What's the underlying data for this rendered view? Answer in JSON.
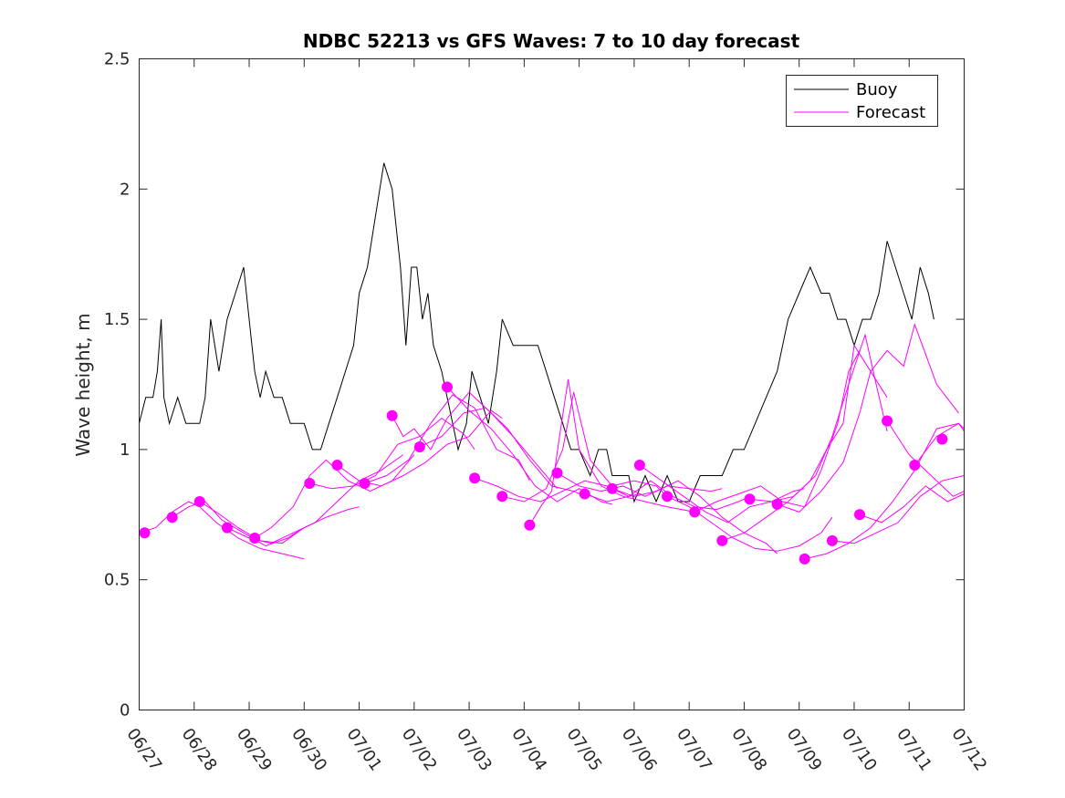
{
  "chart_data": {
    "type": "line",
    "title": "NDBC 52213 vs GFS Waves: 7 to 10 day forecast",
    "ylabel": "Wave height, m",
    "xlabel": "",
    "ylim": [
      0,
      2.5
    ],
    "xlim": [
      0,
      15
    ],
    "yticks": [
      0,
      0.5,
      1,
      1.5,
      2,
      2.5
    ],
    "ytick_labels": [
      "0",
      "0.5",
      "1",
      "1.5",
      "2",
      "2.5"
    ],
    "xticks": [
      0,
      1,
      2,
      3,
      4,
      5,
      6,
      7,
      8,
      9,
      10,
      11,
      12,
      13,
      14,
      15
    ],
    "xtick_labels": [
      "06/27",
      "06/28",
      "06/29",
      "06/30",
      "07/01",
      "07/02",
      "07/03",
      "07/04",
      "07/05",
      "07/06",
      "07/07",
      "07/08",
      "07/09",
      "07/10",
      "07/11",
      "07/12"
    ],
    "x_unit": "days since 06/27 00:00",
    "grid": false,
    "legend": {
      "position": "top-right",
      "entries": [
        {
          "name": "Buoy",
          "color": "#000000"
        },
        {
          "name": "Forecast",
          "color": "#ff00ff"
        }
      ]
    },
    "series": [
      {
        "name": "Buoy",
        "color": "#000000",
        "style": "line",
        "x": [
          0,
          0.12,
          0.25,
          0.33,
          0.4,
          0.45,
          0.55,
          0.7,
          0.85,
          1.0,
          1.1,
          1.2,
          1.3,
          1.45,
          1.6,
          1.75,
          1.9,
          2.0,
          2.1,
          2.2,
          2.3,
          2.45,
          2.6,
          2.75,
          2.9,
          3.0,
          3.15,
          3.3,
          3.45,
          3.6,
          3.75,
          3.9,
          4.0,
          4.15,
          4.3,
          4.45,
          4.6,
          4.75,
          4.85,
          4.95,
          5.05,
          5.15,
          5.25,
          5.35,
          5.5,
          5.6,
          5.7,
          5.8,
          5.95,
          6.05,
          6.2,
          6.35,
          6.5,
          6.6,
          6.8,
          6.95,
          7.1,
          7.25,
          7.4,
          7.55,
          7.7,
          7.85,
          8.0,
          8.2,
          8.35,
          8.5,
          8.6,
          8.75,
          8.9,
          9.0,
          9.2,
          9.4,
          9.6,
          9.8,
          10.0,
          10.2,
          10.4,
          10.6,
          10.8,
          11.0,
          11.2,
          11.4,
          11.6,
          11.8,
          12.0,
          12.2,
          12.4,
          12.55,
          12.7,
          12.85,
          13.0,
          13.15,
          13.3,
          13.45,
          13.6,
          13.75,
          13.9,
          14.05,
          14.2,
          14.35,
          14.45
        ],
        "values": [
          1.1,
          1.2,
          1.2,
          1.3,
          1.5,
          1.2,
          1.1,
          1.2,
          1.1,
          1.1,
          1.1,
          1.2,
          1.5,
          1.3,
          1.5,
          1.6,
          1.7,
          1.5,
          1.3,
          1.2,
          1.3,
          1.2,
          1.2,
          1.1,
          1.1,
          1.1,
          1.0,
          1.0,
          1.1,
          1.2,
          1.3,
          1.4,
          1.6,
          1.7,
          1.9,
          2.1,
          2.0,
          1.7,
          1.4,
          1.7,
          1.7,
          1.5,
          1.6,
          1.4,
          1.3,
          1.2,
          1.1,
          1.0,
          1.1,
          1.3,
          1.2,
          1.1,
          1.3,
          1.5,
          1.4,
          1.4,
          1.4,
          1.4,
          1.3,
          1.2,
          1.1,
          1.0,
          1.0,
          0.9,
          1.0,
          1.0,
          0.9,
          0.9,
          0.9,
          0.8,
          0.9,
          0.8,
          0.9,
          0.8,
          0.8,
          0.9,
          0.9,
          0.9,
          1.0,
          1.0,
          1.1,
          1.2,
          1.3,
          1.5,
          1.6,
          1.7,
          1.6,
          1.6,
          1.5,
          1.5,
          1.4,
          1.5,
          1.5,
          1.6,
          1.8,
          1.7,
          1.6,
          1.5,
          1.7,
          1.6,
          1.5
        ]
      },
      {
        "name": "Forecast",
        "color": "#ff00ff",
        "style": "line",
        "runs": [
          {
            "x": [
              0,
              0.3,
              0.6,
              0.9,
              1.1,
              1.4,
              1.8,
              2.2,
              2.6,
              3.0
            ],
            "values": [
              0.68,
              0.7,
              0.76,
              0.8,
              0.78,
              0.72,
              0.66,
              0.62,
              0.6,
              0.58
            ]
          },
          {
            "x": [
              0.6,
              0.9,
              1.2,
              1.5,
              1.9,
              2.3,
              2.7,
              3.0
            ],
            "values": [
              0.74,
              0.78,
              0.8,
              0.73,
              0.68,
              0.63,
              0.66,
              0.7
            ]
          },
          {
            "x": [
              1.1,
              1.4,
              1.8,
              2.2,
              2.6,
              3.0,
              3.4,
              3.8,
              4.0
            ],
            "values": [
              0.8,
              0.76,
              0.7,
              0.65,
              0.64,
              0.7,
              0.74,
              0.77,
              0.78
            ]
          },
          {
            "x": [
              1.6,
              2.0,
              2.4,
              2.8,
              3.2,
              3.6,
              4.0,
              4.4,
              4.8
            ],
            "values": [
              0.7,
              0.66,
              0.64,
              0.68,
              0.72,
              0.8,
              0.88,
              0.92,
              0.98
            ]
          },
          {
            "x": [
              2.1,
              2.4,
              2.8,
              3.1,
              3.4,
              3.8,
              4.2,
              4.6,
              5.0
            ],
            "values": [
              0.66,
              0.7,
              0.78,
              0.9,
              0.96,
              0.88,
              0.84,
              0.88,
              0.98
            ]
          },
          {
            "x": [
              3.1,
              3.5,
              3.9,
              4.3,
              4.7,
              5.1,
              5.5,
              5.9,
              6.1
            ],
            "values": [
              0.87,
              0.85,
              0.86,
              0.9,
              1.02,
              1.05,
              1.12,
              1.06,
              1.0
            ]
          },
          {
            "x": [
              3.6,
              4.0,
              4.4,
              4.8,
              5.2,
              5.6,
              6.0,
              6.4,
              6.6
            ],
            "values": [
              0.94,
              0.88,
              0.86,
              0.9,
              0.95,
              1.02,
              1.05,
              1.15,
              1.12
            ]
          },
          {
            "x": [
              4.1,
              4.5,
              4.9,
              5.3,
              5.7,
              6.1,
              6.5,
              6.9,
              7.1
            ],
            "values": [
              0.87,
              0.9,
              0.96,
              1.1,
              1.21,
              1.16,
              1.0,
              0.96,
              0.88
            ]
          },
          {
            "x": [
              4.6,
              4.8,
              5.0,
              5.3,
              5.6,
              6.0,
              6.4,
              6.8,
              7.2,
              7.6
            ],
            "values": [
              1.13,
              1.05,
              1.08,
              1.0,
              1.12,
              1.22,
              1.14,
              1.05,
              0.95,
              0.85
            ]
          },
          {
            "x": [
              5.1,
              5.5,
              5.9,
              6.3,
              6.7,
              7.1,
              7.5,
              7.9,
              8.1
            ],
            "values": [
              1.01,
              1.05,
              1.14,
              1.16,
              1.08,
              0.96,
              0.86,
              0.84,
              0.82
            ]
          },
          {
            "x": [
              5.6,
              6.0,
              6.4,
              6.8,
              7.2,
              7.6,
              8.0,
              8.4,
              8.6
            ],
            "values": [
              1.24,
              1.15,
              1.08,
              0.98,
              0.86,
              0.8,
              0.85,
              0.8,
              0.79
            ]
          },
          {
            "x": [
              6.1,
              6.5,
              6.9,
              7.3,
              7.7,
              8.1,
              8.5,
              8.9,
              9.1
            ],
            "values": [
              0.89,
              0.86,
              0.82,
              0.8,
              0.84,
              0.88,
              0.86,
              0.82,
              0.83
            ]
          },
          {
            "x": [
              6.6,
              7.0,
              7.4,
              7.7,
              7.9,
              8.2,
              8.6,
              9.0,
              9.4,
              9.6
            ],
            "values": [
              0.82,
              0.8,
              0.85,
              1.0,
              1.22,
              0.96,
              0.86,
              0.88,
              0.86,
              0.82
            ]
          },
          {
            "x": [
              7.1,
              7.3,
              7.5,
              7.65,
              7.8,
              8.0,
              8.4,
              8.8,
              9.2,
              9.6,
              10.1
            ],
            "values": [
              0.71,
              0.78,
              0.84,
              1.06,
              1.27,
              1.0,
              0.86,
              0.82,
              0.8,
              0.78,
              0.76
            ]
          },
          {
            "x": [
              7.6,
              8.0,
              8.4,
              8.8,
              9.2,
              9.6,
              10.0,
              10.4,
              10.6
            ],
            "values": [
              0.91,
              0.86,
              0.84,
              0.86,
              0.82,
              0.86,
              0.85,
              0.84,
              0.85
            ]
          },
          {
            "x": [
              8.1,
              8.5,
              8.9,
              9.3,
              9.7,
              10.1,
              10.5,
              10.9,
              11.1
            ],
            "values": [
              0.83,
              0.8,
              0.82,
              0.88,
              0.82,
              0.78,
              0.77,
              0.8,
              0.82
            ]
          },
          {
            "x": [
              8.6,
              9.0,
              9.4,
              9.8,
              10.2,
              10.6,
              11.0,
              11.4,
              11.6
            ],
            "values": [
              0.85,
              0.82,
              0.84,
              0.88,
              0.82,
              0.74,
              0.68,
              0.64,
              0.6
            ]
          },
          {
            "x": [
              9.1,
              9.5,
              9.9,
              10.3,
              10.7,
              11.1,
              11.5,
              11.9,
              12.1
            ],
            "values": [
              0.94,
              0.88,
              0.82,
              0.76,
              0.72,
              0.78,
              0.8,
              0.84,
              0.85
            ]
          },
          {
            "x": [
              9.6,
              10.0,
              10.4,
              10.8,
              11.2,
              11.6,
              12.0,
              12.4,
              12.6
            ],
            "values": [
              0.82,
              0.78,
              0.72,
              0.66,
              0.62,
              0.61,
              0.63,
              0.68,
              0.74
            ]
          },
          {
            "x": [
              10.1,
              10.5,
              10.9,
              11.3,
              11.7,
              12.1,
              12.4,
              12.7,
              12.9,
              13.1
            ],
            "values": [
              0.76,
              0.8,
              0.83,
              0.86,
              0.8,
              0.78,
              0.92,
              1.1,
              1.3,
              1.38
            ]
          },
          {
            "x": [
              10.6,
              11.0,
              11.4,
              11.8,
              12.2,
              12.5,
              12.8,
              13.0,
              13.3,
              13.6
            ],
            "values": [
              0.65,
              0.68,
              0.74,
              0.8,
              0.88,
              1.0,
              1.1,
              1.4,
              1.3,
              1.2
            ]
          },
          {
            "x": [
              11.1,
              11.5,
              11.9,
              12.3,
              12.6,
              12.9,
              13.2,
              13.4,
              13.6
            ],
            "values": [
              0.81,
              0.8,
              0.82,
              0.9,
              1.05,
              1.25,
              1.44,
              1.25,
              1.07
            ]
          },
          {
            "x": [
              11.6,
              12.0,
              12.4,
              12.8,
              13.1,
              13.3,
              13.6,
              13.9,
              14.1,
              14.5,
              14.9
            ],
            "values": [
              0.79,
              0.76,
              0.84,
              0.95,
              1.14,
              1.3,
              1.38,
              1.32,
              1.48,
              1.25,
              1.14
            ]
          },
          {
            "x": [
              12.1,
              12.5,
              12.9,
              13.3,
              13.7,
              14.1,
              14.5,
              14.9,
              15.0
            ],
            "values": [
              0.58,
              0.6,
              0.64,
              0.7,
              0.8,
              0.92,
              1.08,
              1.1,
              1.07
            ]
          },
          {
            "x": [
              12.6,
              13.0,
              13.4,
              13.8,
              14.2,
              14.6,
              15.0
            ],
            "values": [
              0.65,
              0.64,
              0.68,
              0.72,
              0.82,
              0.88,
              0.9
            ]
          },
          {
            "x": [
              13.1,
              13.5,
              13.9,
              14.3,
              14.7,
              15.0
            ],
            "values": [
              0.75,
              0.72,
              0.78,
              0.86,
              0.8,
              0.83
            ]
          },
          {
            "x": [
              13.6,
              14.0,
              14.4,
              14.8,
              15.0
            ],
            "values": [
              1.11,
              0.98,
              0.9,
              0.82,
              0.84
            ]
          },
          {
            "x": [
              14.1,
              14.5,
              14.9,
              15.0
            ],
            "values": [
              0.94,
              1.05,
              1.1,
              1.08
            ]
          }
        ]
      },
      {
        "name": "Forecast",
        "color": "#ff00ff",
        "style": "markers",
        "x": [
          0.1,
          0.6,
          1.1,
          1.6,
          2.1,
          3.1,
          3.6,
          4.1,
          4.6,
          5.1,
          5.6,
          6.1,
          6.6,
          7.1,
          7.6,
          8.1,
          8.6,
          9.1,
          9.6,
          10.1,
          10.6,
          11.1,
          11.6,
          12.1,
          12.6,
          13.1,
          13.6,
          14.1,
          14.6
        ],
        "values": [
          0.68,
          0.74,
          0.8,
          0.7,
          0.66,
          0.87,
          0.94,
          0.87,
          1.13,
          1.01,
          1.24,
          0.89,
          0.82,
          0.71,
          0.91,
          0.83,
          0.85,
          0.94,
          0.82,
          0.76,
          0.65,
          0.81,
          0.79,
          0.58,
          0.65,
          0.75,
          1.11,
          0.94,
          1.04
        ]
      }
    ]
  }
}
